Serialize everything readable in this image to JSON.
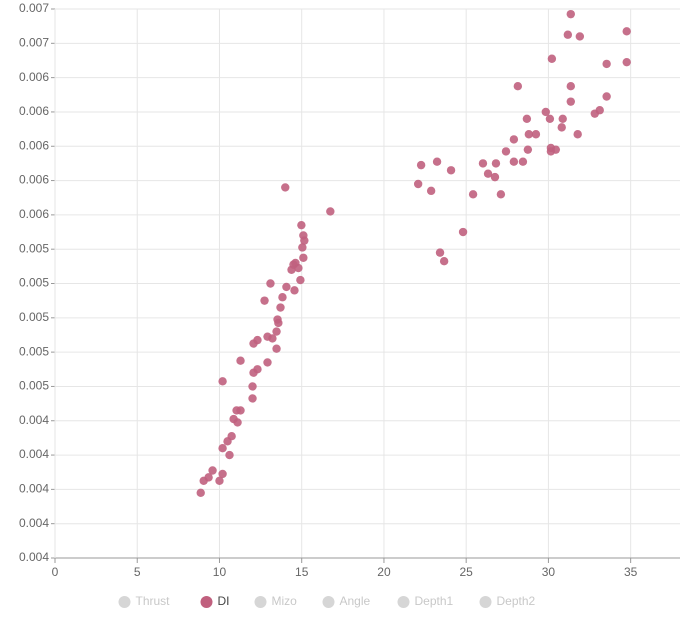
{
  "chart_data": {
    "type": "scatter",
    "xlim": [
      0,
      38
    ],
    "xticks": [
      0,
      5,
      10,
      15,
      20,
      25,
      30,
      35
    ],
    "ylim": [
      0.0036,
      0.0068
    ],
    "yticks": [
      {
        "value": 0.0036,
        "label": "0.004"
      },
      {
        "value": 0.0038,
        "label": "0.004"
      },
      {
        "value": 0.004,
        "label": "0.004"
      },
      {
        "value": 0.0042,
        "label": "0.004"
      },
      {
        "value": 0.0044,
        "label": "0.004"
      },
      {
        "value": 0.0046,
        "label": "0.005"
      },
      {
        "value": 0.0048,
        "label": "0.005"
      },
      {
        "value": 0.005,
        "label": "0.005"
      },
      {
        "value": 0.0052,
        "label": "0.005"
      },
      {
        "value": 0.0054,
        "label": "0.005"
      },
      {
        "value": 0.0056,
        "label": "0.006"
      },
      {
        "value": 0.0058,
        "label": "0.006"
      },
      {
        "value": 0.006,
        "label": "0.006"
      },
      {
        "value": 0.0062,
        "label": "0.006"
      },
      {
        "value": 0.0064,
        "label": "0.006"
      },
      {
        "value": 0.0066,
        "label": "0.007"
      },
      {
        "value": 0.0068,
        "label": "0.007"
      }
    ],
    "grid": true,
    "legend": "bottom",
    "series": [
      {
        "name": "Thrust",
        "color": "#cccccc",
        "visible": false
      },
      {
        "name": "DI",
        "color": "#c0607e",
        "visible": true,
        "x": [
          8.86,
          9.04,
          9.34,
          9.58,
          10.0,
          10.19,
          10.19,
          10.49,
          10.74,
          10.86,
          11.1,
          11.04,
          11.28,
          12.01,
          12.01,
          12.31,
          12.92,
          12.92,
          13.22,
          13.58,
          13.1,
          14.07,
          14.56,
          14.38,
          14.92,
          15.04,
          16.74,
          24.81,
          23.66,
          25.42,
          26.02,
          26.33,
          27.11,
          27.42,
          27.9,
          27.9,
          28.81,
          28.75,
          29.84,
          30.09,
          30.15,
          30.45,
          30.87,
          32.82,
          33.12,
          33.54,
          34.76,
          34.76,
          10.61,
          10.19,
          11.28,
          12.07,
          12.07,
          12.31,
          12.74,
          13.47,
          13.47,
          13.53,
          13.83,
          13.71,
          14.0,
          14.5,
          14.62,
          14.8,
          15.1,
          14.98,
          15.1,
          15.16,
          22.08,
          22.26,
          22.87,
          23.23,
          24.08,
          23.41,
          26.81,
          26.75,
          28.14,
          28.45,
          28.69,
          29.24,
          30.21,
          30.15,
          30.81,
          31.18,
          31.36,
          31.36,
          31.36,
          31.91,
          31.78,
          33.54
        ],
        "values": [
          0.00398,
          0.00405,
          0.00407,
          0.00411,
          0.00405,
          0.00409,
          0.00424,
          0.00428,
          0.00431,
          0.00441,
          0.00439,
          0.00446,
          0.00446,
          0.00453,
          0.0046,
          0.0047,
          0.00474,
          0.00489,
          0.00488,
          0.00497,
          0.0052,
          0.00518,
          0.00516,
          0.00528,
          0.00522,
          0.00541,
          0.00562,
          0.0055,
          0.00533,
          0.00572,
          0.0059,
          0.00584,
          0.00572,
          0.00597,
          0.00604,
          0.00591,
          0.00607,
          0.00598,
          0.0062,
          0.00616,
          0.00599,
          0.00598,
          0.00616,
          0.00619,
          0.00621,
          0.00648,
          0.00667,
          0.00649,
          0.0042,
          0.00463,
          0.00475,
          0.00485,
          0.00468,
          0.00487,
          0.0051,
          0.00482,
          0.00492,
          0.00499,
          0.00512,
          0.00506,
          0.00576,
          0.00531,
          0.00532,
          0.00529,
          0.00535,
          0.00554,
          0.00548,
          0.00545,
          0.00578,
          0.00589,
          0.00574,
          0.00591,
          0.00586,
          0.00538,
          0.0059,
          0.00582,
          0.00635,
          0.00591,
          0.00616,
          0.00607,
          0.00651,
          0.00597,
          0.00611,
          0.00665,
          0.00677,
          0.00635,
          0.00626,
          0.00664,
          0.00607,
          0.00629
        ]
      },
      {
        "name": "Mizo",
        "color": "#cccccc",
        "visible": false
      },
      {
        "name": "Angle",
        "color": "#cccccc",
        "visible": false
      },
      {
        "name": "Depth1",
        "color": "#cccccc",
        "visible": false
      },
      {
        "name": "Depth2",
        "color": "#cccccc",
        "visible": false
      }
    ]
  }
}
